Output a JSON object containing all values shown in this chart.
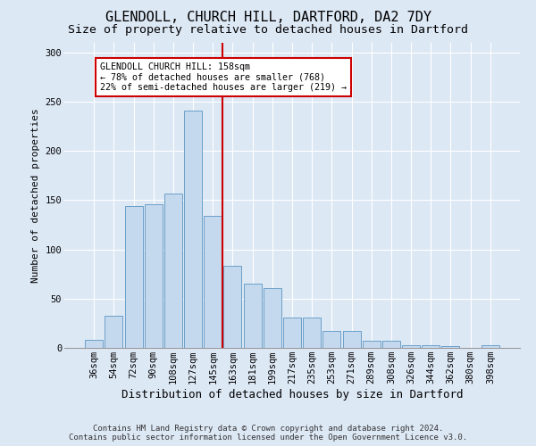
{
  "title1": "GLENDOLL, CHURCH HILL, DARTFORD, DA2 7DY",
  "title2": "Size of property relative to detached houses in Dartford",
  "xlabel": "Distribution of detached houses by size in Dartford",
  "ylabel": "Number of detached properties",
  "categories": [
    "36sqm",
    "54sqm",
    "72sqm",
    "90sqm",
    "108sqm",
    "127sqm",
    "145sqm",
    "163sqm",
    "181sqm",
    "199sqm",
    "217sqm",
    "235sqm",
    "253sqm",
    "271sqm",
    "289sqm",
    "308sqm",
    "326sqm",
    "344sqm",
    "362sqm",
    "380sqm",
    "398sqm"
  ],
  "values": [
    8,
    33,
    144,
    146,
    157,
    241,
    134,
    83,
    65,
    61,
    31,
    31,
    17,
    17,
    7,
    7,
    3,
    3,
    2,
    0,
    3
  ],
  "bar_color": "#c5d9ee",
  "bar_edge_color": "#6a9fc8",
  "vline_x": 6.5,
  "vline_color": "#cc0000",
  "annotation_text": "GLENDOLL CHURCH HILL: 158sqm\n← 78% of detached houses are smaller (768)\n22% of semi-detached houses are larger (219) →",
  "annotation_box_facecolor": "#ffffff",
  "annotation_box_edgecolor": "#cc0000",
  "ylim": [
    0,
    310
  ],
  "yticks": [
    0,
    50,
    100,
    150,
    200,
    250,
    300
  ],
  "footer1": "Contains HM Land Registry data © Crown copyright and database right 2024.",
  "footer2": "Contains public sector information licensed under the Open Government Licence v3.0.",
  "bg_color": "#dde8f5",
  "plot_bg_color": "#dde8f5",
  "title1_fontsize": 11,
  "title2_fontsize": 9.5,
  "xlabel_fontsize": 9,
  "ylabel_fontsize": 8,
  "tick_fontsize": 7.5,
  "footer_fontsize": 6.5,
  "grid_color": "#ffffff"
}
